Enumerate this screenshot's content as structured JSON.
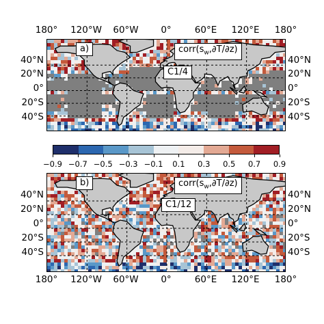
{
  "figure": {
    "lon_labels": [
      "180°",
      "120°W",
      "60°W",
      "0°",
      "60°E",
      "120°E",
      "180°"
    ],
    "lat_labels": [
      "40°N",
      "20°N",
      "0°",
      "20°S",
      "40°S"
    ],
    "panels": [
      {
        "letter": "a)",
        "quantity": "corr(s",
        "subscript": "w",
        "rest": ",∂T/∂z)",
        "experiment": "C1/4"
      },
      {
        "letter": "b)",
        "quantity": "corr(s",
        "subscript": "w",
        "rest": ",∂T/∂z)",
        "experiment": "C1/12"
      }
    ],
    "colorbar": {
      "ticks": [
        "−0.9",
        "−0.7",
        "−0.5",
        "−0.3",
        "−0.1",
        "0.1",
        "0.3",
        "0.5",
        "0.7",
        "0.9"
      ],
      "colors": [
        "#1f2f6b",
        "#2c67b0",
        "#5a98c8",
        "#a7c4d6",
        "#eef1f3",
        "#f4ece8",
        "#e3a994",
        "#c45a3c",
        "#a11e25",
        "#6a0c18"
      ]
    },
    "colors": {
      "land": "#c8c8c8",
      "masked": "#7f7f7f",
      "coast": "#000000"
    }
  }
}
